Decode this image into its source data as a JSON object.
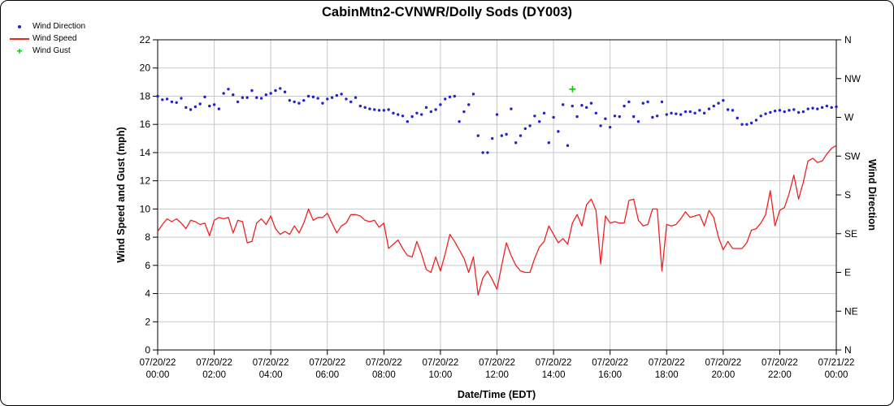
{
  "title": "CabinMtn2-CVNWR/Dolly Sods (DY003)",
  "legend": {
    "items": [
      {
        "label": "Wind Direction",
        "marker": "dot",
        "color": "#2222cc"
      },
      {
        "label": "Wind Speed",
        "marker": "line",
        "color": "#ee2222"
      },
      {
        "label": "Wind Gust",
        "marker": "plus",
        "color": "#00cc00"
      }
    ]
  },
  "axes": {
    "left_label": "Wind Speed and Gust (mph)",
    "right_label": "Wind Direction",
    "x_label": "Date/Time (EDT)"
  },
  "colors": {
    "grid": "#c8c8c8",
    "frame": "#000000",
    "wind_direction": "#2222cc",
    "wind_speed": "#ee2222",
    "wind_gust": "#00cc00"
  },
  "chart_data": {
    "type": "line",
    "title": "CabinMtn2-CVNWR/Dolly Sods (DY003)",
    "xlabel": "Date/Time (EDT)",
    "ylabel_left": "Wind Speed and Gust (mph)",
    "ylabel_right": "Wind Direction",
    "grid": true,
    "legend_position": "top-left",
    "xlim_hours": [
      0,
      24
    ],
    "ylim_left": [
      0,
      22
    ],
    "y_ticks_left": [
      0,
      2,
      4,
      6,
      8,
      10,
      12,
      14,
      16,
      18,
      20,
      22
    ],
    "right_axis_ticks": [
      {
        "value": 22,
        "label": "N"
      },
      {
        "value": 19.25,
        "label": "NW"
      },
      {
        "value": 16.5,
        "label": "W"
      },
      {
        "value": 13.75,
        "label": "SW"
      },
      {
        "value": 11,
        "label": "S"
      },
      {
        "value": 8.25,
        "label": "SE"
      },
      {
        "value": 5.5,
        "label": "E"
      },
      {
        "value": 2.75,
        "label": "NE"
      },
      {
        "value": 0,
        "label": "N"
      }
    ],
    "x_ticks": [
      {
        "hours": 0,
        "line1": "07/20/22",
        "line2": "00:00"
      },
      {
        "hours": 2,
        "line1": "07/20/22",
        "line2": "02:00"
      },
      {
        "hours": 4,
        "line1": "07/20/22",
        "line2": "04:00"
      },
      {
        "hours": 6,
        "line1": "07/20/22",
        "line2": "06:00"
      },
      {
        "hours": 8,
        "line1": "07/20/22",
        "line2": "08:00"
      },
      {
        "hours": 10,
        "line1": "07/20/22",
        "line2": "10:00"
      },
      {
        "hours": 12,
        "line1": "07/20/22",
        "line2": "12:00"
      },
      {
        "hours": 14,
        "line1": "07/20/22",
        "line2": "14:00"
      },
      {
        "hours": 16,
        "line1": "07/20/22",
        "line2": "16:00"
      },
      {
        "hours": 18,
        "line1": "07/20/22",
        "line2": "18:00"
      },
      {
        "hours": 20,
        "line1": "07/20/22",
        "line2": "20:00"
      },
      {
        "hours": 22,
        "line1": "07/20/22",
        "line2": "22:00"
      },
      {
        "hours": 24,
        "line1": "07/21/22",
        "line2": "00:00"
      }
    ],
    "series": [
      {
        "name": "Wind Direction",
        "type": "scatter",
        "marker": "dot",
        "color": "#2222cc",
        "y_units": "plotted on left-axis scale; compass axis on right (0=N, 5.5=E, 11=S, 16.5=W, 22=N)",
        "x_start_hours": 0,
        "x_step_hours": 0.166667,
        "values": [
          18.0,
          17.75,
          17.8,
          17.6,
          17.55,
          17.85,
          17.2,
          17.05,
          17.25,
          17.45,
          17.95,
          17.3,
          17.4,
          17.1,
          18.2,
          18.5,
          18.1,
          17.6,
          17.9,
          17.9,
          18.4,
          17.9,
          17.85,
          18.1,
          18.2,
          18.4,
          18.55,
          18.3,
          17.7,
          17.6,
          17.5,
          17.7,
          18.0,
          17.95,
          17.85,
          17.5,
          17.8,
          17.9,
          18.05,
          18.15,
          17.8,
          17.6,
          17.9,
          17.3,
          17.2,
          17.1,
          17.05,
          17.0,
          17.0,
          17.05,
          16.8,
          16.7,
          16.6,
          16.2,
          16.55,
          16.8,
          16.7,
          17.2,
          16.9,
          17.05,
          17.4,
          17.8,
          17.95,
          18.0,
          16.2,
          16.9,
          17.4,
          18.15,
          15.2,
          14.0,
          14.0,
          15.0,
          16.7,
          15.2,
          15.3,
          17.1,
          14.7,
          15.2,
          15.7,
          15.9,
          16.6,
          16.2,
          16.8,
          14.7,
          16.5,
          15.5,
          17.4,
          14.5,
          17.3,
          16.55,
          17.35,
          17.2,
          17.5,
          16.8,
          15.9,
          16.4,
          15.8,
          16.6,
          16.55,
          17.3,
          17.6,
          16.55,
          16.2,
          17.5,
          17.6,
          16.5,
          16.6,
          17.6,
          16.7,
          16.8,
          16.75,
          16.7,
          16.9,
          16.9,
          16.8,
          17.0,
          16.8,
          17.1,
          17.3,
          17.5,
          17.7,
          17.05,
          17.0,
          16.45,
          16.0,
          16.0,
          16.1,
          16.3,
          16.6,
          16.75,
          16.85,
          16.95,
          17.0,
          16.9,
          17.0,
          17.05,
          16.85,
          16.9,
          17.1,
          17.15,
          17.1,
          17.2,
          17.3,
          17.2,
          17.25
        ]
      },
      {
        "name": "Wind Speed",
        "type": "line",
        "color": "#ee2222",
        "y_units": "mph",
        "x_start_hours": 0,
        "x_step_hours": 0.166667,
        "values": [
          8.4,
          8.9,
          9.3,
          9.1,
          9.3,
          9.0,
          8.6,
          9.2,
          9.1,
          8.9,
          9.0,
          8.1,
          9.2,
          9.4,
          9.3,
          9.4,
          8.3,
          9.2,
          9.1,
          7.6,
          7.7,
          9.0,
          9.3,
          8.9,
          9.5,
          8.6,
          8.2,
          8.4,
          8.2,
          8.8,
          8.3,
          9.0,
          10.0,
          9.2,
          9.4,
          9.4,
          9.7,
          9.0,
          8.3,
          8.8,
          9.0,
          9.6,
          9.6,
          9.5,
          9.2,
          9.1,
          9.2,
          8.7,
          9.0,
          7.2,
          7.5,
          7.8,
          7.2,
          6.7,
          6.6,
          7.7,
          6.8,
          5.7,
          5.5,
          6.6,
          5.6,
          6.8,
          8.2,
          7.7,
          7.1,
          6.5,
          5.5,
          6.6,
          3.9,
          5.1,
          5.6,
          5.0,
          4.3,
          6.0,
          7.6,
          6.7,
          6.0,
          5.6,
          5.5,
          5.5,
          6.5,
          7.3,
          7.7,
          8.8,
          8.2,
          7.6,
          7.9,
          7.5,
          9.0,
          9.6,
          8.8,
          10.3,
          10.7,
          9.9,
          6.1,
          9.5,
          9.0,
          9.1,
          9.0,
          9.0,
          10.6,
          10.7,
          9.2,
          8.8,
          8.9,
          10.0,
          10.0,
          5.6,
          8.9,
          8.8,
          8.9,
          9.3,
          9.8,
          9.4,
          9.5,
          9.6,
          8.8,
          9.9,
          9.4,
          8.0,
          7.1,
          7.7,
          7.2,
          7.2,
          7.2,
          7.6,
          8.5,
          8.6,
          9.0,
          9.6,
          11.3,
          8.8,
          9.9,
          10.1,
          11.1,
          12.4,
          10.7,
          11.9,
          13.4,
          13.6,
          13.3,
          13.4,
          13.9,
          14.3,
          14.5
        ]
      },
      {
        "name": "Wind Gust",
        "type": "scatter",
        "marker": "plus",
        "color": "#00cc00",
        "y_units": "mph",
        "x": [
          14.67
        ],
        "y": [
          18.5
        ]
      }
    ]
  }
}
